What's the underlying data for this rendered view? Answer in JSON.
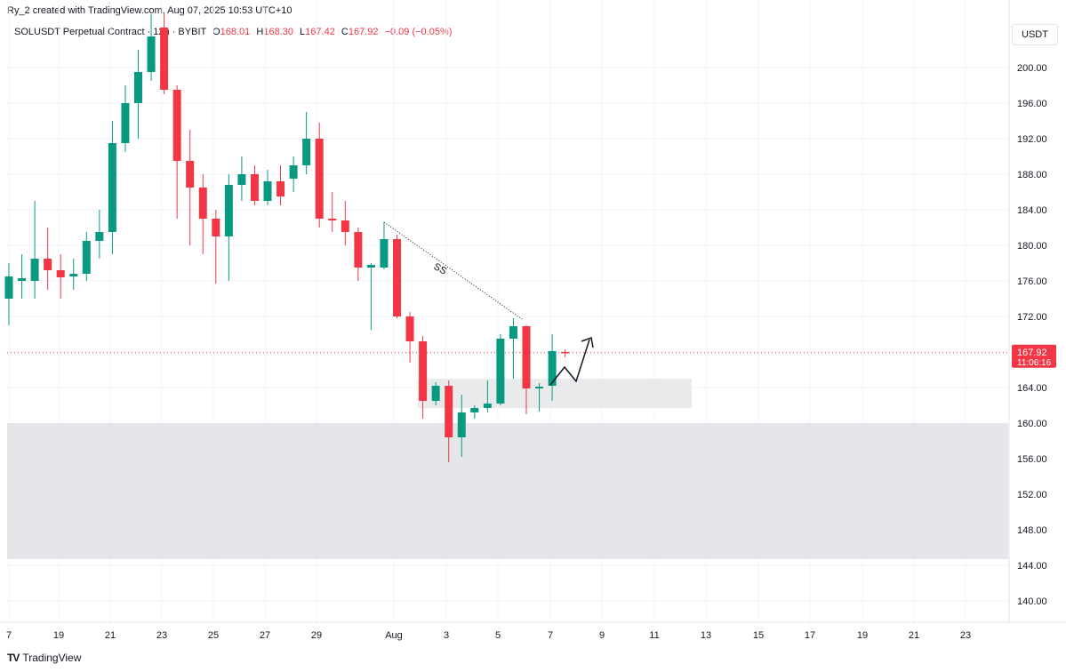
{
  "header": {
    "attribution": "Ry_2 created with TradingView.com, Aug 07, 2025 10:53 UTC+10",
    "symbol_line": "SOLUSDT Perpetual Contract · 12h · BYBIT",
    "o_label": "O",
    "o_value": "168.01",
    "h_label": "H",
    "h_value": "168.30",
    "l_label": "L",
    "l_value": "167.42",
    "c_label": "C",
    "c_value": "167.92",
    "change": "−0.09 (−0.05%)"
  },
  "currency_button": "USDT",
  "footer": {
    "logo_glyph": "TV",
    "brand": "TradingView"
  },
  "colors": {
    "up": "#089981",
    "down": "#f23645",
    "grid": "#f0f3fa",
    "zone": "#e5e6e9"
  },
  "chart_data": {
    "type": "candlestick",
    "title": "SOLUSDT Perpetual Contract · 12h · BYBIT",
    "y_ticks": [
      "200.00",
      "196.00",
      "192.00",
      "188.00",
      "184.00",
      "180.00",
      "176.00",
      "172.00",
      "168.00",
      "164.00",
      "160.00",
      "156.00",
      "152.00",
      "148.00",
      "144.00",
      "140.00"
    ],
    "ylim": [
      138,
      206
    ],
    "x_ticks": [
      "7",
      "19",
      "21",
      "23",
      "25",
      "27",
      "29",
      "Aug",
      "3",
      "5",
      "7",
      "9",
      "11",
      "13",
      "15",
      "17",
      "19",
      "21",
      "23"
    ],
    "current_price": {
      "label": "167.92",
      "countdown": "11:06:16",
      "value": 167.92
    },
    "candles": [
      {
        "o": 174,
        "h": 178,
        "l": 171,
        "c": 176.5
      },
      {
        "o": 176,
        "h": 179,
        "l": 174,
        "c": 176.3
      },
      {
        "o": 176,
        "h": 185,
        "l": 174,
        "c": 178.5
      },
      {
        "o": 178.5,
        "h": 182,
        "l": 175,
        "c": 177.2
      },
      {
        "o": 177.2,
        "h": 179,
        "l": 174,
        "c": 176.4
      },
      {
        "o": 176.5,
        "h": 178.5,
        "l": 175,
        "c": 176.8
      },
      {
        "o": 176.8,
        "h": 181.5,
        "l": 176,
        "c": 180.5
      },
      {
        "o": 180.5,
        "h": 184,
        "l": 178.5,
        "c": 181.5
      },
      {
        "o": 181.5,
        "h": 194,
        "l": 179,
        "c": 191.5
      },
      {
        "o": 191.5,
        "h": 198,
        "l": 190.5,
        "c": 196
      },
      {
        "o": 196,
        "h": 202,
        "l": 192,
        "c": 199.5
      },
      {
        "o": 199.5,
        "h": 206,
        "l": 198.5,
        "c": 203.5
      },
      {
        "o": 204.5,
        "h": 206,
        "l": 197,
        "c": 197.5
      },
      {
        "o": 197.5,
        "h": 198,
        "l": 183,
        "c": 189.5
      },
      {
        "o": 189.5,
        "h": 193,
        "l": 180,
        "c": 186.5
      },
      {
        "o": 186.5,
        "h": 188,
        "l": 179,
        "c": 183
      },
      {
        "o": 183,
        "h": 184,
        "l": 175.7,
        "c": 181
      },
      {
        "o": 181,
        "h": 188,
        "l": 176,
        "c": 186.8
      },
      {
        "o": 186.8,
        "h": 190,
        "l": 185,
        "c": 188
      },
      {
        "o": 188,
        "h": 189,
        "l": 184.5,
        "c": 185
      },
      {
        "o": 185,
        "h": 188.5,
        "l": 184.5,
        "c": 187.2
      },
      {
        "o": 187.2,
        "h": 189,
        "l": 184.5,
        "c": 185.5
      },
      {
        "o": 187.5,
        "h": 190,
        "l": 186,
        "c": 189
      },
      {
        "o": 189,
        "h": 195,
        "l": 188,
        "c": 192
      },
      {
        "o": 192,
        "h": 193.8,
        "l": 182,
        "c": 183
      },
      {
        "o": 183,
        "h": 186,
        "l": 181.5,
        "c": 182.8
      },
      {
        "o": 182.8,
        "h": 185,
        "l": 180,
        "c": 181.5
      },
      {
        "o": 181.5,
        "h": 182,
        "l": 176,
        "c": 177.5
      },
      {
        "o": 177.5,
        "h": 178,
        "l": 170.5,
        "c": 177.8
      },
      {
        "o": 177.5,
        "h": 182.6,
        "l": 177.3,
        "c": 180.7
      },
      {
        "o": 180.7,
        "h": 181.2,
        "l": 171.8,
        "c": 172
      },
      {
        "o": 172,
        "h": 172.5,
        "l": 166.8,
        "c": 169.2
      },
      {
        "o": 169.2,
        "h": 169.8,
        "l": 160.5,
        "c": 162.5
      },
      {
        "o": 162.5,
        "h": 164.6,
        "l": 162,
        "c": 164.2
      },
      {
        "o": 164.2,
        "h": 164.8,
        "l": 155.6,
        "c": 158.4
      },
      {
        "o": 158.4,
        "h": 163.2,
        "l": 156.2,
        "c": 161.2
      },
      {
        "o": 161.2,
        "h": 162,
        "l": 160.5,
        "c": 161.7
      },
      {
        "o": 161.7,
        "h": 164.8,
        "l": 161.2,
        "c": 162.2
      },
      {
        "o": 162.2,
        "h": 170,
        "l": 162,
        "c": 169.5
      },
      {
        "o": 169.5,
        "h": 171.8,
        "l": 165,
        "c": 170.9
      },
      {
        "o": 170.9,
        "h": 171,
        "l": 161,
        "c": 163.9
      },
      {
        "o": 163.9,
        "h": 164.5,
        "l": 161.3,
        "c": 164.1
      },
      {
        "o": 164.2,
        "h": 170,
        "l": 162.5,
        "c": 168.1
      },
      {
        "o": 168.01,
        "h": 168.3,
        "l": 167.42,
        "c": 167.92
      }
    ],
    "zones": [
      {
        "from": 160,
        "to": 144.7
      },
      {
        "from": 165,
        "to": 161.7
      }
    ],
    "annotation": {
      "text": "SS"
    }
  }
}
